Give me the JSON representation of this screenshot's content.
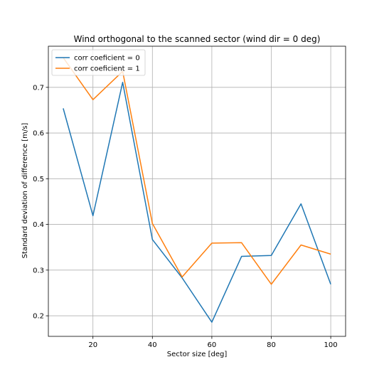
{
  "chart_data": {
    "type": "line",
    "title": "Wind orthogonal to the scanned sector (wind dir = 0 deg)",
    "xlabel": "Sector size [deg]",
    "ylabel": "Standard deviation of difference [m/s]",
    "x": [
      10,
      20,
      30,
      40,
      50,
      60,
      70,
      80,
      90,
      100
    ],
    "xlim": [
      5,
      105
    ],
    "ylim": [
      0.155,
      0.79
    ],
    "xticks": [
      20,
      40,
      60,
      80,
      100
    ],
    "yticks": [
      0.2,
      0.3,
      0.4,
      0.5,
      0.6,
      0.7
    ],
    "grid": true,
    "legend_position": "top-left",
    "series": [
      {
        "name": "corr coeficient = 0",
        "color": "#1f77b4",
        "values": [
          0.654,
          0.419,
          0.711,
          0.367,
          0.283,
          0.186,
          0.33,
          0.332,
          0.445,
          0.269
        ]
      },
      {
        "name": "corr coeficient = 1",
        "color": "#ff7f0e",
        "values": [
          0.765,
          0.673,
          0.735,
          0.402,
          0.285,
          0.359,
          0.36,
          0.269,
          0.355,
          0.335
        ]
      }
    ]
  }
}
